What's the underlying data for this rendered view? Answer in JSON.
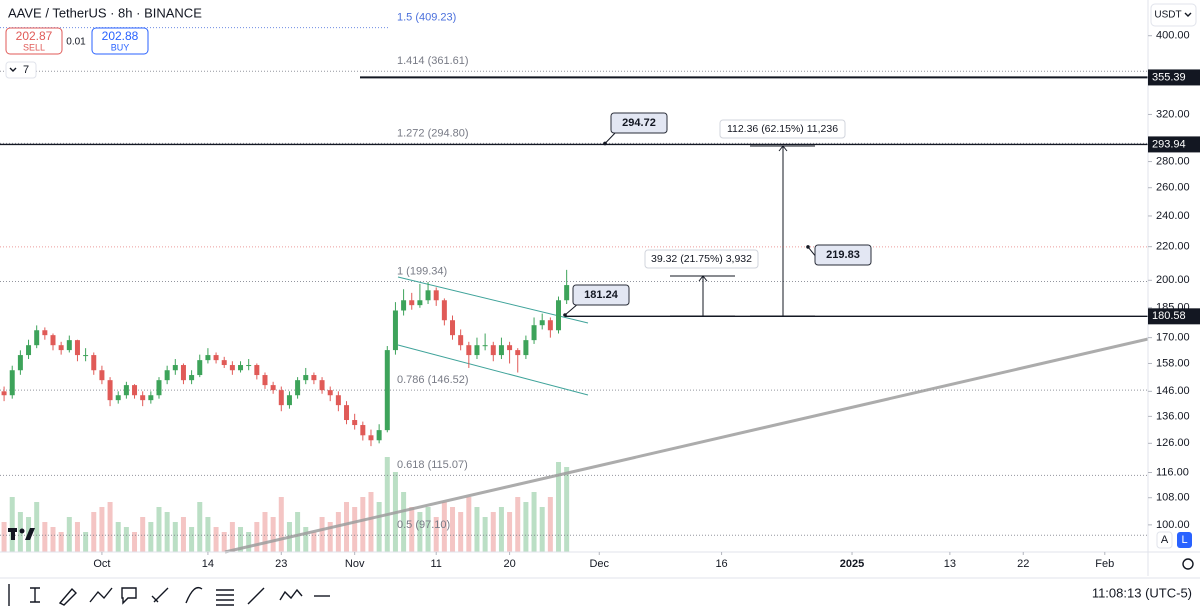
{
  "header": {
    "symbol": "AAVE / TetherUS · 8h · BINANCE",
    "sell_price": 202.87,
    "sell": "SELL",
    "spread": 0.01,
    "buy_price": 202.88,
    "buy": "BUY",
    "indicators": 7,
    "currency": "USDT"
  },
  "chart_data": {
    "type": "candlestick",
    "log_scale": true,
    "up_color": "#3da35a",
    "down_color": "#e05a57",
    "ylim": [
      92.6,
      442.6
    ],
    "xlim": [
      -12.5,
      128.3
    ],
    "yticks": [
      {
        "value": 400,
        "label": "400.00"
      },
      {
        "value": 320,
        "label": "320.00"
      },
      {
        "value": 280,
        "label": "280.00"
      },
      {
        "value": 260,
        "label": "260.00"
      },
      {
        "value": 240,
        "label": "240.00"
      },
      {
        "value": 220,
        "label": "220.00"
      },
      {
        "value": 200,
        "label": "200.00"
      },
      {
        "value": 185,
        "label": "185.00"
      },
      {
        "value": 170,
        "label": "170.00"
      },
      {
        "value": 158,
        "label": "158.00"
      },
      {
        "value": 146,
        "label": "146.00"
      },
      {
        "value": 136,
        "label": "136.00"
      },
      {
        "value": 126,
        "label": "126.00"
      },
      {
        "value": 116,
        "label": "116.00"
      },
      {
        "value": 108,
        "label": "108.00"
      },
      {
        "value": 100,
        "label": "100.00"
      }
    ],
    "xticks": [
      {
        "value": 0,
        "label": "Oct"
      },
      {
        "value": 13,
        "label": "14"
      },
      {
        "value": 22,
        "label": "23"
      },
      {
        "value": 31,
        "label": "Nov"
      },
      {
        "value": 41,
        "label": "11"
      },
      {
        "value": 50,
        "label": "20"
      },
      {
        "value": 61,
        "label": "Dec"
      },
      {
        "value": 76,
        "label": "16"
      },
      {
        "value": 92,
        "label": "2025"
      },
      {
        "value": 104,
        "label": "13"
      },
      {
        "value": 113,
        "label": "22"
      },
      {
        "value": 123,
        "label": "Feb"
      }
    ],
    "x": [
      -12,
      -11,
      -10,
      -9,
      -8,
      -7,
      -6,
      -5,
      -4,
      -3,
      -2,
      -1,
      0,
      1,
      2,
      3,
      4,
      5,
      6,
      7,
      8,
      9,
      10,
      11,
      12,
      13,
      14,
      15,
      16,
      17,
      18,
      19,
      20,
      21,
      22,
      23,
      24,
      25,
      26,
      27,
      28,
      29,
      30,
      31,
      32,
      33,
      34,
      35,
      36,
      37,
      38,
      39,
      40,
      41,
      42,
      43,
      44,
      45,
      46,
      47,
      48,
      49,
      50,
      51,
      52,
      53,
      54,
      55,
      56,
      57
    ],
    "candles": [
      [
        146,
        148,
        142,
        144.4
      ],
      [
        144.4,
        157,
        143,
        155
      ],
      [
        155,
        164,
        153,
        161.8
      ],
      [
        161.8,
        169,
        160,
        166.4
      ],
      [
        166.4,
        176,
        165,
        173.6
      ],
      [
        173.6,
        175,
        169,
        171.2
      ],
      [
        171.2,
        172,
        164,
        166.4
      ],
      [
        166.4,
        168,
        162,
        164.1
      ],
      [
        164.1,
        171,
        163,
        168.8
      ],
      [
        168.8,
        169,
        159,
        161.8
      ],
      [
        161.8,
        165,
        159,
        161.8
      ],
      [
        161.8,
        163,
        153,
        155
      ],
      [
        155,
        157,
        149,
        150.7
      ],
      [
        150.7,
        152,
        140,
        142.4
      ],
      [
        142.4,
        146,
        141,
        144.4
      ],
      [
        144.4,
        150,
        143,
        148.6
      ],
      [
        148.6,
        149,
        143,
        144.4
      ],
      [
        144.4,
        146,
        140,
        142.4
      ],
      [
        142.4,
        146,
        141,
        144.4
      ],
      [
        144.4,
        152,
        143,
        150.7
      ],
      [
        150.7,
        157,
        149,
        155
      ],
      [
        155,
        160,
        153,
        157.3
      ],
      [
        157.3,
        158,
        149,
        150.7
      ],
      [
        150.7,
        155,
        149,
        152.9
      ],
      [
        152.9,
        162,
        152,
        159.5
      ],
      [
        159.5,
        165,
        158,
        161.8
      ],
      [
        161.8,
        163,
        158,
        159.5
      ],
      [
        159.5,
        161,
        156,
        157.3
      ],
      [
        157.3,
        159,
        153,
        155
      ],
      [
        155,
        159,
        154,
        157.3
      ],
      [
        157.3,
        160,
        155,
        157.3
      ],
      [
        157.3,
        158,
        151,
        152.9
      ],
      [
        152.9,
        154,
        147,
        148.6
      ],
      [
        148.6,
        150,
        145,
        146.5
      ],
      [
        146.5,
        148,
        138,
        140.4
      ],
      [
        140.4,
        146,
        139,
        144.4
      ],
      [
        144.4,
        152,
        143,
        150.7
      ],
      [
        150.7,
        156,
        149,
        152.9
      ],
      [
        152.9,
        154,
        149,
        150.7
      ],
      [
        150.7,
        152,
        145,
        146.5
      ],
      [
        146.5,
        148,
        142,
        144.4
      ],
      [
        144.4,
        146,
        138,
        140.4
      ],
      [
        140.4,
        142,
        133,
        134.6
      ],
      [
        134.6,
        137,
        131,
        132.7
      ],
      [
        132.7,
        134,
        127,
        128.9
      ],
      [
        128.9,
        131,
        125,
        127.1
      ],
      [
        127.1,
        133,
        126,
        130.8
      ],
      [
        130.8,
        166,
        130,
        164.1
      ],
      [
        164.1,
        188,
        162,
        183.6
      ],
      [
        183.6,
        195,
        181,
        189
      ],
      [
        189,
        193,
        184,
        186.4
      ],
      [
        186.4,
        198,
        185,
        189
      ],
      [
        189,
        199,
        187,
        194.4
      ],
      [
        194.4,
        196,
        186,
        189
      ],
      [
        189,
        190,
        176,
        178.6
      ],
      [
        178.6,
        181,
        169,
        171.2
      ],
      [
        171.2,
        174,
        164,
        166.4
      ],
      [
        166.4,
        168,
        156,
        161.8
      ],
      [
        161.8,
        170,
        160,
        166.4
      ],
      [
        166.4,
        172,
        164,
        166.4
      ],
      [
        166.4,
        168,
        159,
        161.8
      ],
      [
        161.8,
        170,
        160,
        166.4
      ],
      [
        166.4,
        168,
        158,
        164.1
      ],
      [
        164.1,
        165,
        154,
        161.8
      ],
      [
        161.8,
        171,
        160,
        168.8
      ],
      [
        168.8,
        180,
        167,
        176.1
      ],
      [
        176.1,
        182,
        174,
        178.6
      ],
      [
        178.6,
        180,
        170,
        173.6
      ],
      [
        173.6,
        191,
        172,
        189
      ],
      [
        189,
        206,
        187,
        197.3
      ]
    ],
    "volume_lim": [
      0,
      100
    ],
    "volumes": [
      30,
      55,
      40,
      35,
      50,
      30,
      25,
      20,
      35,
      30,
      20,
      40,
      45,
      50,
      30,
      25,
      20,
      35,
      30,
      45,
      40,
      30,
      35,
      25,
      50,
      35,
      25,
      20,
      30,
      25,
      20,
      30,
      40,
      35,
      55,
      30,
      40,
      25,
      20,
      35,
      30,
      40,
      50,
      45,
      55,
      60,
      50,
      95,
      80,
      60,
      45,
      40,
      45,
      35,
      50,
      45,
      40,
      55,
      45,
      35,
      40,
      45,
      40,
      55,
      50,
      60,
      45,
      55,
      90,
      85
    ],
    "fib_levels": [
      {
        "label": "1.5 (409.23)",
        "value": 409.23,
        "color": "#4a6fdc"
      },
      {
        "label": "1.414 (361.61)",
        "value": 361.61,
        "color": "#787b86"
      },
      {
        "label": "1.272 (294.80)",
        "value": 294.8,
        "color": "#787b86"
      },
      {
        "label": "1 (199.34)",
        "value": 199.34,
        "color": "#787b86"
      },
      {
        "label": "0.786 (146.52)",
        "value": 146.52,
        "color": "#787b86"
      },
      {
        "label": "0.618 (115.07)",
        "value": 115.07,
        "color": "#787b86"
      },
      {
        "label": "0.5 (97.10)",
        "value": 97.1,
        "color": "#787b86"
      }
    ],
    "price_lines": [
      355.39,
      293.94,
      180.58
    ],
    "callouts": [
      294.72,
      181.24,
      219.83
    ],
    "measures": [
      "39.32 (21.75%) 3,932",
      "112.36 (62.15%) 11,236"
    ]
  },
  "status": {
    "clock": "11:08:13 (UTC-5)",
    "auto": "A",
    "log": "L"
  }
}
